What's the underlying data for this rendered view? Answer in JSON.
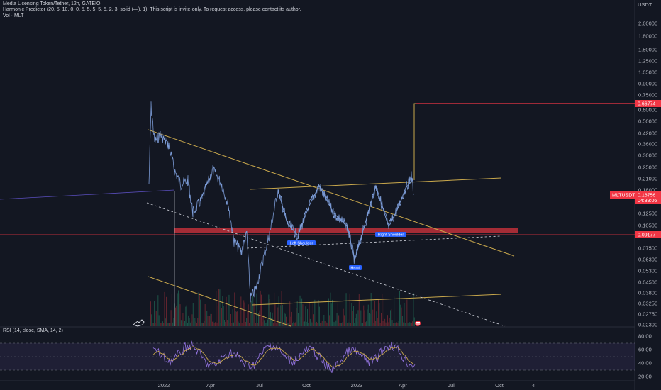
{
  "legend": {
    "title": "Media Licensing Token/Tether, 12h, GATEIO",
    "indicator": "Harmonic Predictor (20, 5, 10, 0, 0, 5, 5, 5, 5, 5, 2, 3, solid (—), 1): This script is invite-only. To request access, please contact its author.",
    "volume": "Vol · MLT"
  },
  "price_axis": {
    "currency": "USDT",
    "ticks": [
      "2.60000",
      "1.80000",
      "1.50000",
      "1.25000",
      "1.05000",
      "0.90000",
      "0.75000",
      "0.60000",
      "0.50000",
      "0.42000",
      "0.36000",
      "0.30000",
      "0.25000",
      "0.21000",
      "0.18000",
      "0.15000",
      "0.12500",
      "0.10500",
      "0.09000",
      "0.07500",
      "0.06300",
      "0.05300",
      "0.04500",
      "0.03800",
      "0.03250",
      "0.02750",
      "0.02300"
    ]
  },
  "price_tags": {
    "target": "0.66774",
    "symbol": "MLTUSDT",
    "last": "0.16756",
    "countdown": "04:39:06",
    "support": "0.09177"
  },
  "time_axis": [
    "2022",
    "Apr",
    "Jul",
    "Oct",
    "2023",
    "Apr",
    "Jul",
    "Oct",
    "4"
  ],
  "patterns": {
    "left_shoulder": "Left Shoulder",
    "head": "Head",
    "right_shoulder": "Right Shoulder"
  },
  "rsi": {
    "legend": "RSI (14, close, SMA, 14, 2)",
    "ticks": [
      "80.00",
      "60.00",
      "40.00",
      "20.00"
    ]
  },
  "colors": {
    "background": "#131722",
    "candle": "#7b9bd6",
    "trend": "#c9a84c",
    "red": "#f23645",
    "zone": "#c0303a",
    "vol_up": "#1e5a4c",
    "vol_down": "#6b2630",
    "rsi_line": "#8e70d8",
    "rsi_ma": "#c9a84c"
  }
}
